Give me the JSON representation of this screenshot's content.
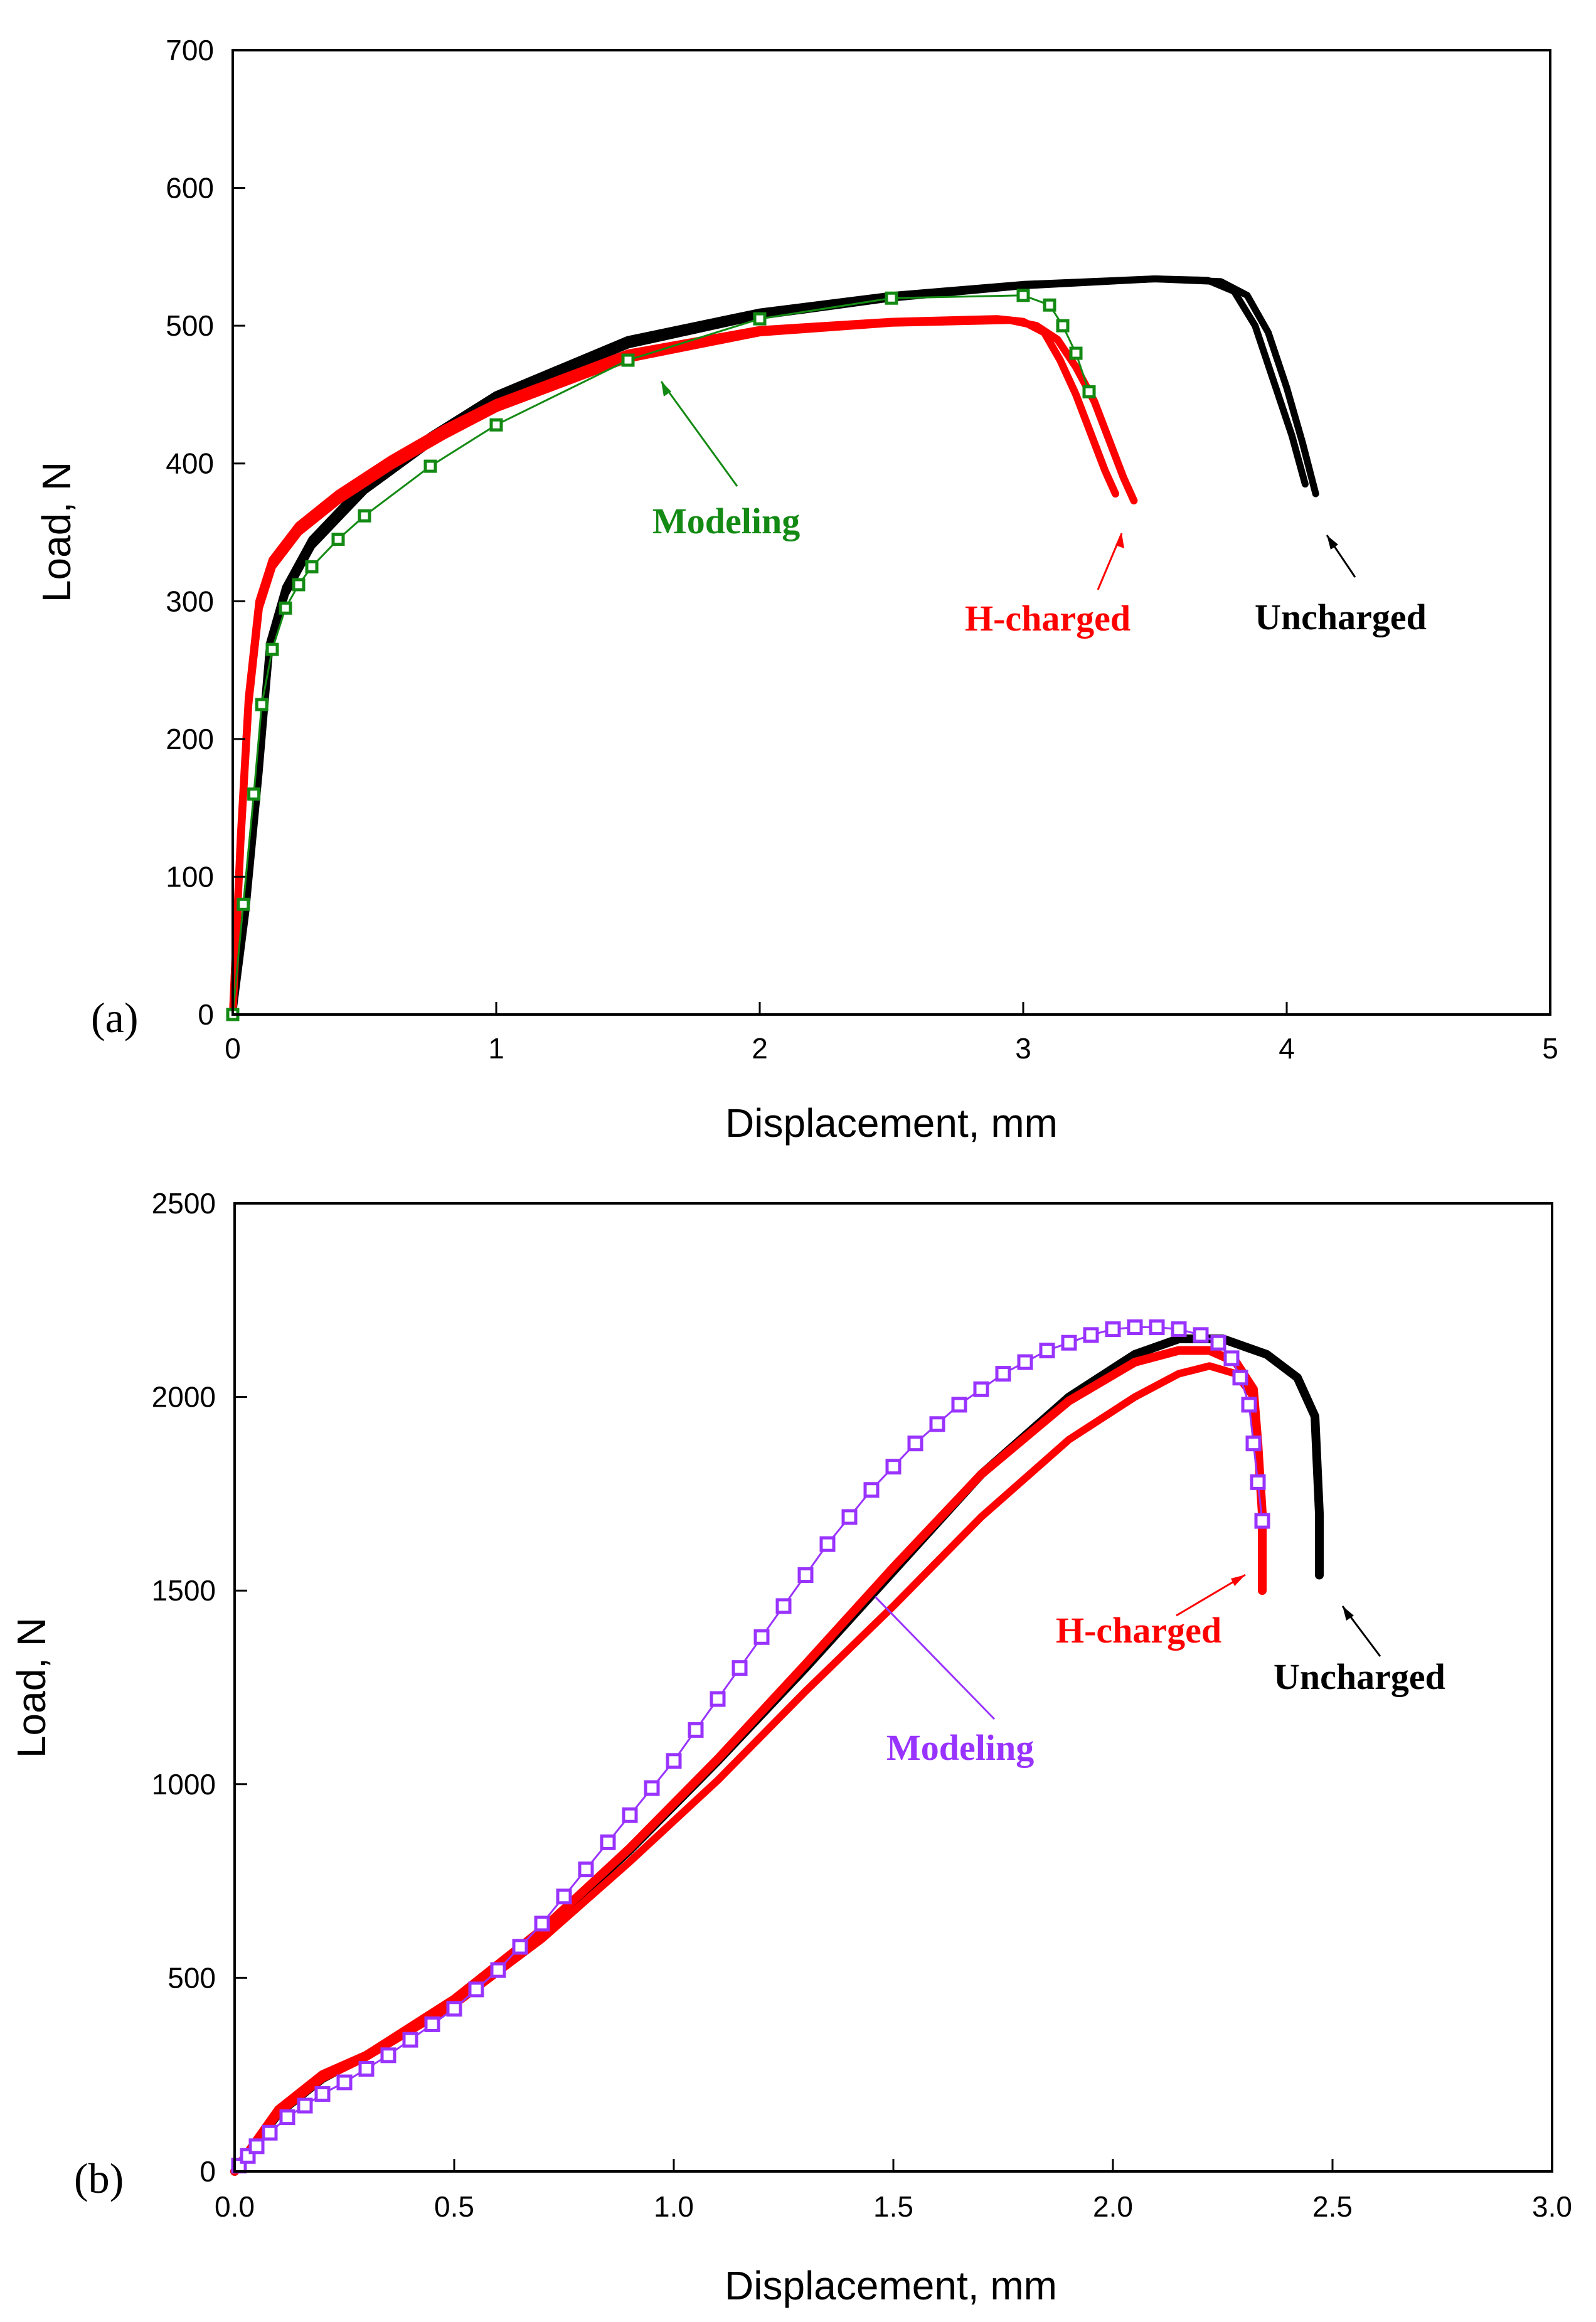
{
  "colors": {
    "uncharged": "#000000",
    "h_charged": "#ff0000",
    "modeling_a": "#138a13",
    "modeling_b": "#9933ff"
  },
  "chart_data": [
    {
      "type": "line",
      "panel": "(a)",
      "xlabel": "Displacement, mm",
      "ylabel": "Load, N",
      "xlim": [
        0,
        5
      ],
      "ylim": [
        0,
        700
      ],
      "xticks": [
        0,
        1,
        2,
        3,
        4,
        5
      ],
      "xtick_labels": [
        "0",
        "1",
        "2",
        "3",
        "4",
        "5"
      ],
      "yticks": [
        0,
        100,
        200,
        300,
        400,
        500,
        600,
        700
      ],
      "ytick_labels": [
        "0",
        "100",
        "200",
        "300",
        "400",
        "500",
        "600",
        "700"
      ],
      "series": [
        {
          "name": "Uncharged",
          "style": "band",
          "color": "#000000",
          "x": [
            0,
            0.05,
            0.1,
            0.14,
            0.2,
            0.3,
            0.5,
            0.75,
            1.0,
            1.5,
            2.0,
            2.5,
            3.0,
            3.5,
            3.7,
            3.8,
            3.88,
            3.95,
            4.02,
            4.07
          ],
          "y": [
            0,
            80,
            180,
            270,
            310,
            345,
            385,
            420,
            450,
            490,
            510,
            522,
            530,
            534,
            533,
            525,
            500,
            460,
            420,
            385
          ]
        },
        {
          "name": "Uncharged",
          "style": "band",
          "color": "#000000",
          "x": [
            0,
            0.05,
            0.1,
            0.14,
            0.2,
            0.3,
            0.5,
            0.75,
            1.0,
            1.5,
            2.0,
            2.5,
            3.0,
            3.5,
            3.75,
            3.85,
            3.93,
            4.0,
            4.06,
            4.11
          ],
          "y": [
            0,
            75,
            175,
            265,
            305,
            340,
            380,
            415,
            446,
            486,
            507,
            520,
            529,
            534,
            532,
            522,
            495,
            455,
            415,
            378
          ]
        },
        {
          "name": "H-charged",
          "style": "band",
          "color": "#ff0000",
          "x": [
            0,
            0.03,
            0.06,
            0.1,
            0.15,
            0.25,
            0.4,
            0.6,
            0.8,
            1.0,
            1.5,
            2.0,
            2.5,
            2.9,
            3.0,
            3.08,
            3.14,
            3.2,
            3.26,
            3.31,
            3.35
          ],
          "y": [
            0,
            130,
            230,
            300,
            330,
            355,
            378,
            403,
            425,
            444,
            480,
            497,
            503,
            505,
            503,
            495,
            475,
            450,
            420,
            395,
            378
          ]
        },
        {
          "name": "H-charged",
          "style": "band",
          "color": "#ff0000",
          "x": [
            0,
            0.03,
            0.06,
            0.1,
            0.15,
            0.25,
            0.4,
            0.6,
            0.8,
            1.0,
            1.5,
            2.0,
            2.5,
            2.95,
            3.05,
            3.13,
            3.2,
            3.27,
            3.33,
            3.38,
            3.42
          ],
          "y": [
            0,
            125,
            225,
            295,
            325,
            350,
            373,
            398,
            420,
            440,
            476,
            495,
            502,
            504,
            500,
            490,
            470,
            445,
            415,
            390,
            373
          ]
        },
        {
          "name": "Modeling",
          "style": "markers",
          "color": "#138a13",
          "x": [
            0,
            0.04,
            0.08,
            0.11,
            0.15,
            0.2,
            0.25,
            0.3,
            0.4,
            0.5,
            0.75,
            1.0,
            1.5,
            2.0,
            2.5,
            3.0,
            3.1,
            3.15,
            3.2,
            3.25
          ],
          "y": [
            0,
            80,
            160,
            225,
            265,
            295,
            312,
            325,
            345,
            362,
            398,
            428,
            475,
            505,
            520,
            522,
            515,
            500,
            480,
            452
          ]
        }
      ],
      "annotations": [
        {
          "text": "Modeling",
          "color": "#138a13",
          "arrow_to": [
            1.62,
            458
          ]
        },
        {
          "text": "H-charged",
          "color": "#ff0000",
          "arrow_to": [
            3.37,
            355
          ]
        },
        {
          "text": "Uncharged",
          "color": "#000000",
          "arrow_to": [
            4.14,
            360
          ]
        }
      ]
    },
    {
      "type": "line",
      "panel": "(b)",
      "xlabel": "Displacement, mm",
      "ylabel": "Load, N",
      "xlim": [
        0,
        3.0
      ],
      "ylim": [
        0,
        2500
      ],
      "xticks": [
        0,
        0.5,
        1.0,
        1.5,
        2.0,
        2.5,
        3.0
      ],
      "xtick_labels": [
        "0.0",
        "0.5",
        "1.0",
        "1.5",
        "2.0",
        "2.5",
        "3.0"
      ],
      "yticks": [
        0,
        500,
        1000,
        1500,
        2000,
        2500
      ],
      "ytick_labels": [
        "0",
        "500",
        "1000",
        "1500",
        "2000",
        "2500"
      ],
      "series": [
        {
          "name": "Uncharged",
          "style": "band",
          "color": "#000000",
          "x": [
            0,
            0.1,
            0.2,
            0.3,
            0.5,
            0.7,
            0.9,
            1.1,
            1.3,
            1.5,
            1.7,
            1.9,
            2.05,
            2.15,
            2.25,
            2.35,
            2.42,
            2.46,
            2.47,
            2.47
          ],
          "y": [
            0,
            150,
            240,
            300,
            440,
            620,
            830,
            1060,
            1300,
            1550,
            1800,
            2000,
            2110,
            2150,
            2150,
            2110,
            2050,
            1950,
            1700,
            1540
          ]
        },
        {
          "name": "H-charged",
          "style": "band",
          "color": "#ff0000",
          "x": [
            0,
            0.1,
            0.2,
            0.3,
            0.5,
            0.7,
            0.9,
            1.1,
            1.3,
            1.5,
            1.7,
            1.9,
            2.05,
            2.15,
            2.22,
            2.28,
            2.32,
            2.33,
            2.34,
            2.34
          ],
          "y": [
            0,
            160,
            250,
            300,
            445,
            625,
            835,
            1065,
            1310,
            1560,
            1800,
            1990,
            2090,
            2120,
            2120,
            2090,
            2020,
            1880,
            1700,
            1500
          ]
        },
        {
          "name": "H-charged",
          "style": "band",
          "color": "#ff0000",
          "x": [
            0,
            0.1,
            0.2,
            0.3,
            0.5,
            0.7,
            0.9,
            1.1,
            1.3,
            1.5,
            1.7,
            1.9,
            2.05,
            2.15,
            2.22,
            2.28,
            2.32,
            2.33,
            2.34,
            2.34
          ],
          "y": [
            0,
            150,
            240,
            295,
            430,
            600,
            800,
            1010,
            1240,
            1460,
            1690,
            1890,
            2000,
            2060,
            2080,
            2060,
            2000,
            1880,
            1700,
            1520
          ]
        },
        {
          "name": "Modeling",
          "style": "markers",
          "color": "#9933ff",
          "x": [
            0.01,
            0.03,
            0.05,
            0.08,
            0.12,
            0.16,
            0.2,
            0.25,
            0.3,
            0.35,
            0.4,
            0.45,
            0.5,
            0.55,
            0.6,
            0.65,
            0.7,
            0.75,
            0.8,
            0.85,
            0.9,
            0.95,
            1.0,
            1.05,
            1.1,
            1.15,
            1.2,
            1.25,
            1.3,
            1.35,
            1.4,
            1.45,
            1.5,
            1.55,
            1.6,
            1.65,
            1.7,
            1.75,
            1.8,
            1.85,
            1.9,
            1.95,
            2.0,
            2.05,
            2.1,
            2.15,
            2.2,
            2.24,
            2.27,
            2.29,
            2.31,
            2.32,
            2.33,
            2.34
          ],
          "y": [
            15,
            40,
            65,
            100,
            140,
            170,
            200,
            230,
            265,
            300,
            340,
            380,
            420,
            470,
            520,
            580,
            640,
            710,
            780,
            850,
            920,
            990,
            1060,
            1140,
            1220,
            1300,
            1380,
            1460,
            1540,
            1620,
            1690,
            1760,
            1820,
            1880,
            1930,
            1980,
            2020,
            2060,
            2090,
            2120,
            2140,
            2160,
            2175,
            2180,
            2180,
            2175,
            2160,
            2140,
            2100,
            2050,
            1980,
            1880,
            1780,
            1680
          ]
        }
      ],
      "annotations": [
        {
          "text": "H-charged",
          "color": "#ff0000",
          "arrow_to": [
            2.33,
            1640
          ]
        },
        {
          "text": "Uncharged",
          "color": "#000000",
          "arrow_to": [
            2.5,
            1530
          ]
        },
        {
          "text": "Modeling",
          "color": "#9933ff",
          "arrow_to": [
            1.43,
            1480
          ]
        }
      ]
    }
  ]
}
